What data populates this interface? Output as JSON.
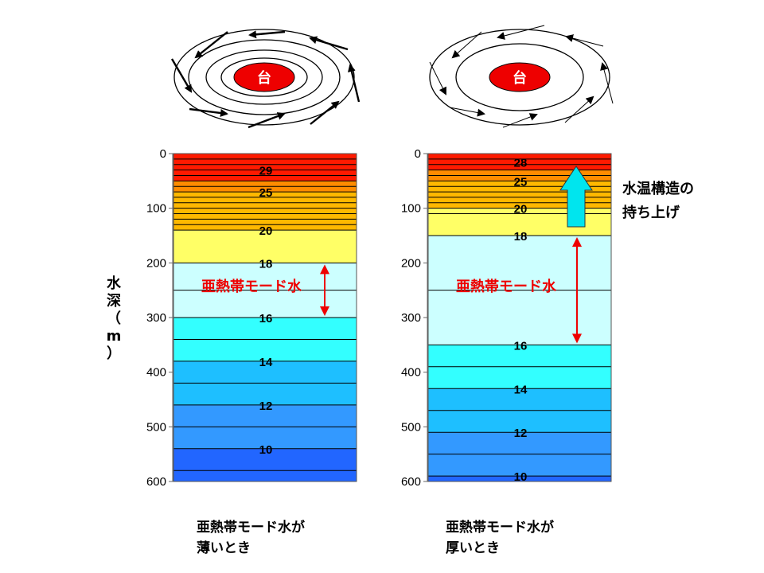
{
  "typhoon_label": "台",
  "axis": {
    "title": "水深（m）",
    "ticks": [
      0,
      100,
      200,
      300,
      400,
      500,
      600
    ]
  },
  "mode_water_label": "亜熱帯モード水",
  "uplift_label": [
    "水温構造の",
    "持ち上げ"
  ],
  "columns": [
    {
      "caption": [
        "亜熱帯モード水が",
        "薄いとき"
      ],
      "layers": [
        {
          "top": 0,
          "bottom": 50,
          "color": "#ff1a00"
        },
        {
          "top": 50,
          "bottom": 70,
          "color": "#ff8c00"
        },
        {
          "top": 70,
          "bottom": 140,
          "color": "#ffb800"
        },
        {
          "top": 140,
          "bottom": 200,
          "color": "#ffff66"
        },
        {
          "top": 200,
          "bottom": 300,
          "color": "#ccffff"
        },
        {
          "top": 300,
          "bottom": 380,
          "color": "#33ffff"
        },
        {
          "top": 380,
          "bottom": 460,
          "color": "#1ebfff"
        },
        {
          "top": 460,
          "bottom": 540,
          "color": "#3399ff"
        },
        {
          "top": 540,
          "bottom": 600,
          "color": "#2266ff"
        }
      ],
      "lines": [
        10,
        20,
        30,
        40,
        50,
        60,
        70,
        80,
        90,
        100,
        110,
        120,
        130,
        140,
        200,
        250,
        300,
        340,
        380,
        420,
        460,
        500,
        540,
        580,
        600
      ],
      "labels": [
        {
          "text": "29",
          "depth": 30
        },
        {
          "text": "25",
          "depth": 70
        },
        {
          "text": "20",
          "depth": 140
        },
        {
          "text": "18",
          "depth": 200
        },
        {
          "text": "16",
          "depth": 300
        },
        {
          "text": "14",
          "depth": 380
        },
        {
          "text": "12",
          "depth": 460
        },
        {
          "text": "10",
          "depth": 540
        }
      ],
      "mode_water": {
        "top": 200,
        "bottom": 300
      }
    },
    {
      "caption": [
        "亜熱帯モード水が",
        "厚いとき"
      ],
      "layers": [
        {
          "top": 0,
          "bottom": 30,
          "color": "#ff1a00"
        },
        {
          "top": 30,
          "bottom": 50,
          "color": "#ff8c00"
        },
        {
          "top": 50,
          "bottom": 100,
          "color": "#ffb800"
        },
        {
          "top": 100,
          "bottom": 150,
          "color": "#ffff66"
        },
        {
          "top": 150,
          "bottom": 350,
          "color": "#ccffff"
        },
        {
          "top": 350,
          "bottom": 430,
          "color": "#33ffff"
        },
        {
          "top": 430,
          "bottom": 510,
          "color": "#1ebfff"
        },
        {
          "top": 510,
          "bottom": 590,
          "color": "#3399ff"
        },
        {
          "top": 590,
          "bottom": 600,
          "color": "#2266ff"
        }
      ],
      "lines": [
        10,
        20,
        30,
        40,
        50,
        60,
        70,
        80,
        90,
        100,
        110,
        150,
        250,
        350,
        390,
        430,
        470,
        510,
        550,
        590,
        600
      ],
      "labels": [
        {
          "text": "28",
          "depth": 15
        },
        {
          "text": "25",
          "depth": 50
        },
        {
          "text": "20",
          "depth": 100
        },
        {
          "text": "18",
          "depth": 150
        },
        {
          "text": "16",
          "depth": 350
        },
        {
          "text": "14",
          "depth": 430
        },
        {
          "text": "12",
          "depth": 510
        },
        {
          "text": "10",
          "depth": 590
        }
      ],
      "mode_water": {
        "top": 150,
        "bottom": 350
      }
    }
  ],
  "colors": {
    "typhoon_eye": "#ee0000",
    "mode_water_text": "#ee0000",
    "arrow_red": "#ee0000",
    "uplift_arrow": "#00e5ee"
  }
}
